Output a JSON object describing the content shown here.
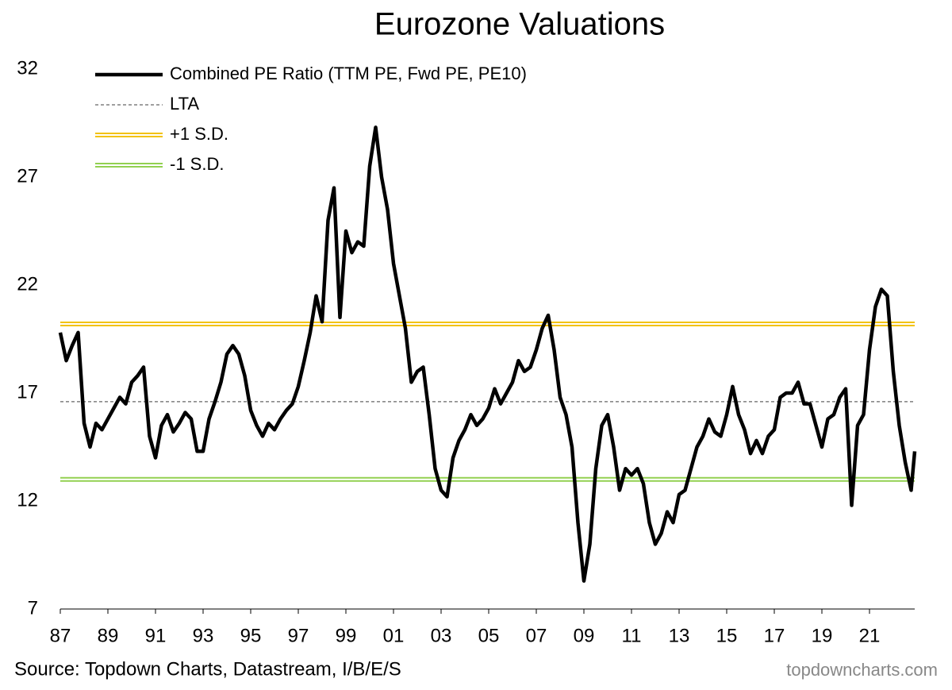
{
  "chart_data": {
    "type": "line",
    "title": "Eurozone Valuations",
    "source": "Source: Topdown Charts, Datastream, I/B/E/S",
    "watermark": "topdowncharts.com",
    "x": [
      1987,
      1987.25,
      1987.5,
      1987.75,
      1988,
      1988.25,
      1988.5,
      1988.75,
      1989,
      1989.25,
      1989.5,
      1989.75,
      1990,
      1990.25,
      1990.5,
      1990.75,
      1991,
      1991.25,
      1991.5,
      1991.75,
      1992,
      1992.25,
      1992.5,
      1992.75,
      1993,
      1993.25,
      1993.5,
      1993.75,
      1994,
      1994.25,
      1994.5,
      1994.75,
      1995,
      1995.25,
      1995.5,
      1995.75,
      1996,
      1996.25,
      1996.5,
      1996.75,
      1997,
      1997.25,
      1997.5,
      1997.75,
      1998,
      1998.25,
      1998.5,
      1998.75,
      1999,
      1999.25,
      1999.5,
      1999.75,
      2000,
      2000.25,
      2000.5,
      2000.75,
      2001,
      2001.25,
      2001.5,
      2001.75,
      2002,
      2002.25,
      2002.5,
      2002.75,
      2003,
      2003.25,
      2003.5,
      2003.75,
      2004,
      2004.25,
      2004.5,
      2004.75,
      2005,
      2005.25,
      2005.5,
      2005.75,
      2006,
      2006.25,
      2006.5,
      2006.75,
      2007,
      2007.25,
      2007.5,
      2007.75,
      2008,
      2008.25,
      2008.5,
      2008.75,
      2009,
      2009.25,
      2009.5,
      2009.75,
      2010,
      2010.25,
      2010.5,
      2010.75,
      2011,
      2011.25,
      2011.5,
      2011.75,
      2012,
      2012.25,
      2012.5,
      2012.75,
      2013,
      2013.25,
      2013.5,
      2013.75,
      2014,
      2014.25,
      2014.5,
      2014.75,
      2015,
      2015.25,
      2015.5,
      2015.75,
      2016,
      2016.25,
      2016.5,
      2016.75,
      2017,
      2017.25,
      2017.5,
      2017.75,
      2018,
      2018.25,
      2018.5,
      2018.75,
      2019,
      2019.25,
      2019.5,
      2019.75,
      2020,
      2020.25,
      2020.5,
      2020.75,
      2021,
      2021.25,
      2021.5,
      2021.75,
      2022,
      2022.25,
      2022.5,
      2022.75,
      2022.9
    ],
    "series": [
      {
        "name": "Combined PE Ratio (TTM PE, Fwd PE, PE10)",
        "color": "#000000",
        "values": [
          19.8,
          18.5,
          19.2,
          19.8,
          15.6,
          14.5,
          15.6,
          15.3,
          15.8,
          16.3,
          16.8,
          16.5,
          17.5,
          17.8,
          18.2,
          15.0,
          14.0,
          15.5,
          16.0,
          15.2,
          15.6,
          16.1,
          15.8,
          14.3,
          14.3,
          15.8,
          16.6,
          17.5,
          18.8,
          19.2,
          18.8,
          17.8,
          16.2,
          15.5,
          15.0,
          15.6,
          15.3,
          15.8,
          16.2,
          16.5,
          17.3,
          18.5,
          19.8,
          21.5,
          20.3,
          25.0,
          26.5,
          20.5,
          24.5,
          23.5,
          24.0,
          23.8,
          27.5,
          29.3,
          27.0,
          25.5,
          23.0,
          21.5,
          20.0,
          17.5,
          18.0,
          18.2,
          16.0,
          13.5,
          12.5,
          12.2,
          14.0,
          14.8,
          15.3,
          16.0,
          15.5,
          15.8,
          16.3,
          17.2,
          16.5,
          17.0,
          17.5,
          18.5,
          18.0,
          18.2,
          19.0,
          20.0,
          20.6,
          19.0,
          16.8,
          16.0,
          14.5,
          11.0,
          8.3,
          10.0,
          13.5,
          15.5,
          16.0,
          14.5,
          12.5,
          13.5,
          13.2,
          13.5,
          12.8,
          11.0,
          10.0,
          10.5,
          11.5,
          11.0,
          12.3,
          12.5,
          13.5,
          14.5,
          15.0,
          15.8,
          15.2,
          15.0,
          16.0,
          17.3,
          16.0,
          15.3,
          14.2,
          14.8,
          14.2,
          15.0,
          15.3,
          16.8,
          17.0,
          17.0,
          17.5,
          16.5,
          16.5,
          15.5,
          14.5,
          15.8,
          16.0,
          16.8,
          17.2,
          11.8,
          15.5,
          16.0,
          19.0,
          21.0,
          21.8,
          21.5,
          18.0,
          15.5,
          13.8,
          12.5,
          14.3
        ]
      }
    ],
    "reference_lines": [
      {
        "name": "LTA",
        "value": 16.6,
        "color": "#666666",
        "style": "dashed"
      },
      {
        "name": "+1 S.D.",
        "value": 20.2,
        "color": "#f2c200",
        "style": "double"
      },
      {
        "name": "-1 S.D.",
        "value": 13.0,
        "color": "#92d050",
        "style": "double"
      }
    ],
    "xlim": [
      1987,
      2022.9
    ],
    "xticks": [
      {
        "value": 1987,
        "label": "87"
      },
      {
        "value": 1989,
        "label": "89"
      },
      {
        "value": 1991,
        "label": "91"
      },
      {
        "value": 1993,
        "label": "93"
      },
      {
        "value": 1995,
        "label": "95"
      },
      {
        "value": 1997,
        "label": "97"
      },
      {
        "value": 1999,
        "label": "99"
      },
      {
        "value": 2001,
        "label": "01"
      },
      {
        "value": 2003,
        "label": "03"
      },
      {
        "value": 2005,
        "label": "05"
      },
      {
        "value": 2007,
        "label": "07"
      },
      {
        "value": 2009,
        "label": "09"
      },
      {
        "value": 2011,
        "label": "11"
      },
      {
        "value": 2013,
        "label": "13"
      },
      {
        "value": 2015,
        "label": "15"
      },
      {
        "value": 2017,
        "label": "17"
      },
      {
        "value": 2019,
        "label": "19"
      },
      {
        "value": 2021,
        "label": "21"
      }
    ],
    "ylim": [
      7,
      32
    ],
    "yticks": [
      7,
      12,
      17,
      22,
      27,
      32
    ],
    "grid": false
  }
}
